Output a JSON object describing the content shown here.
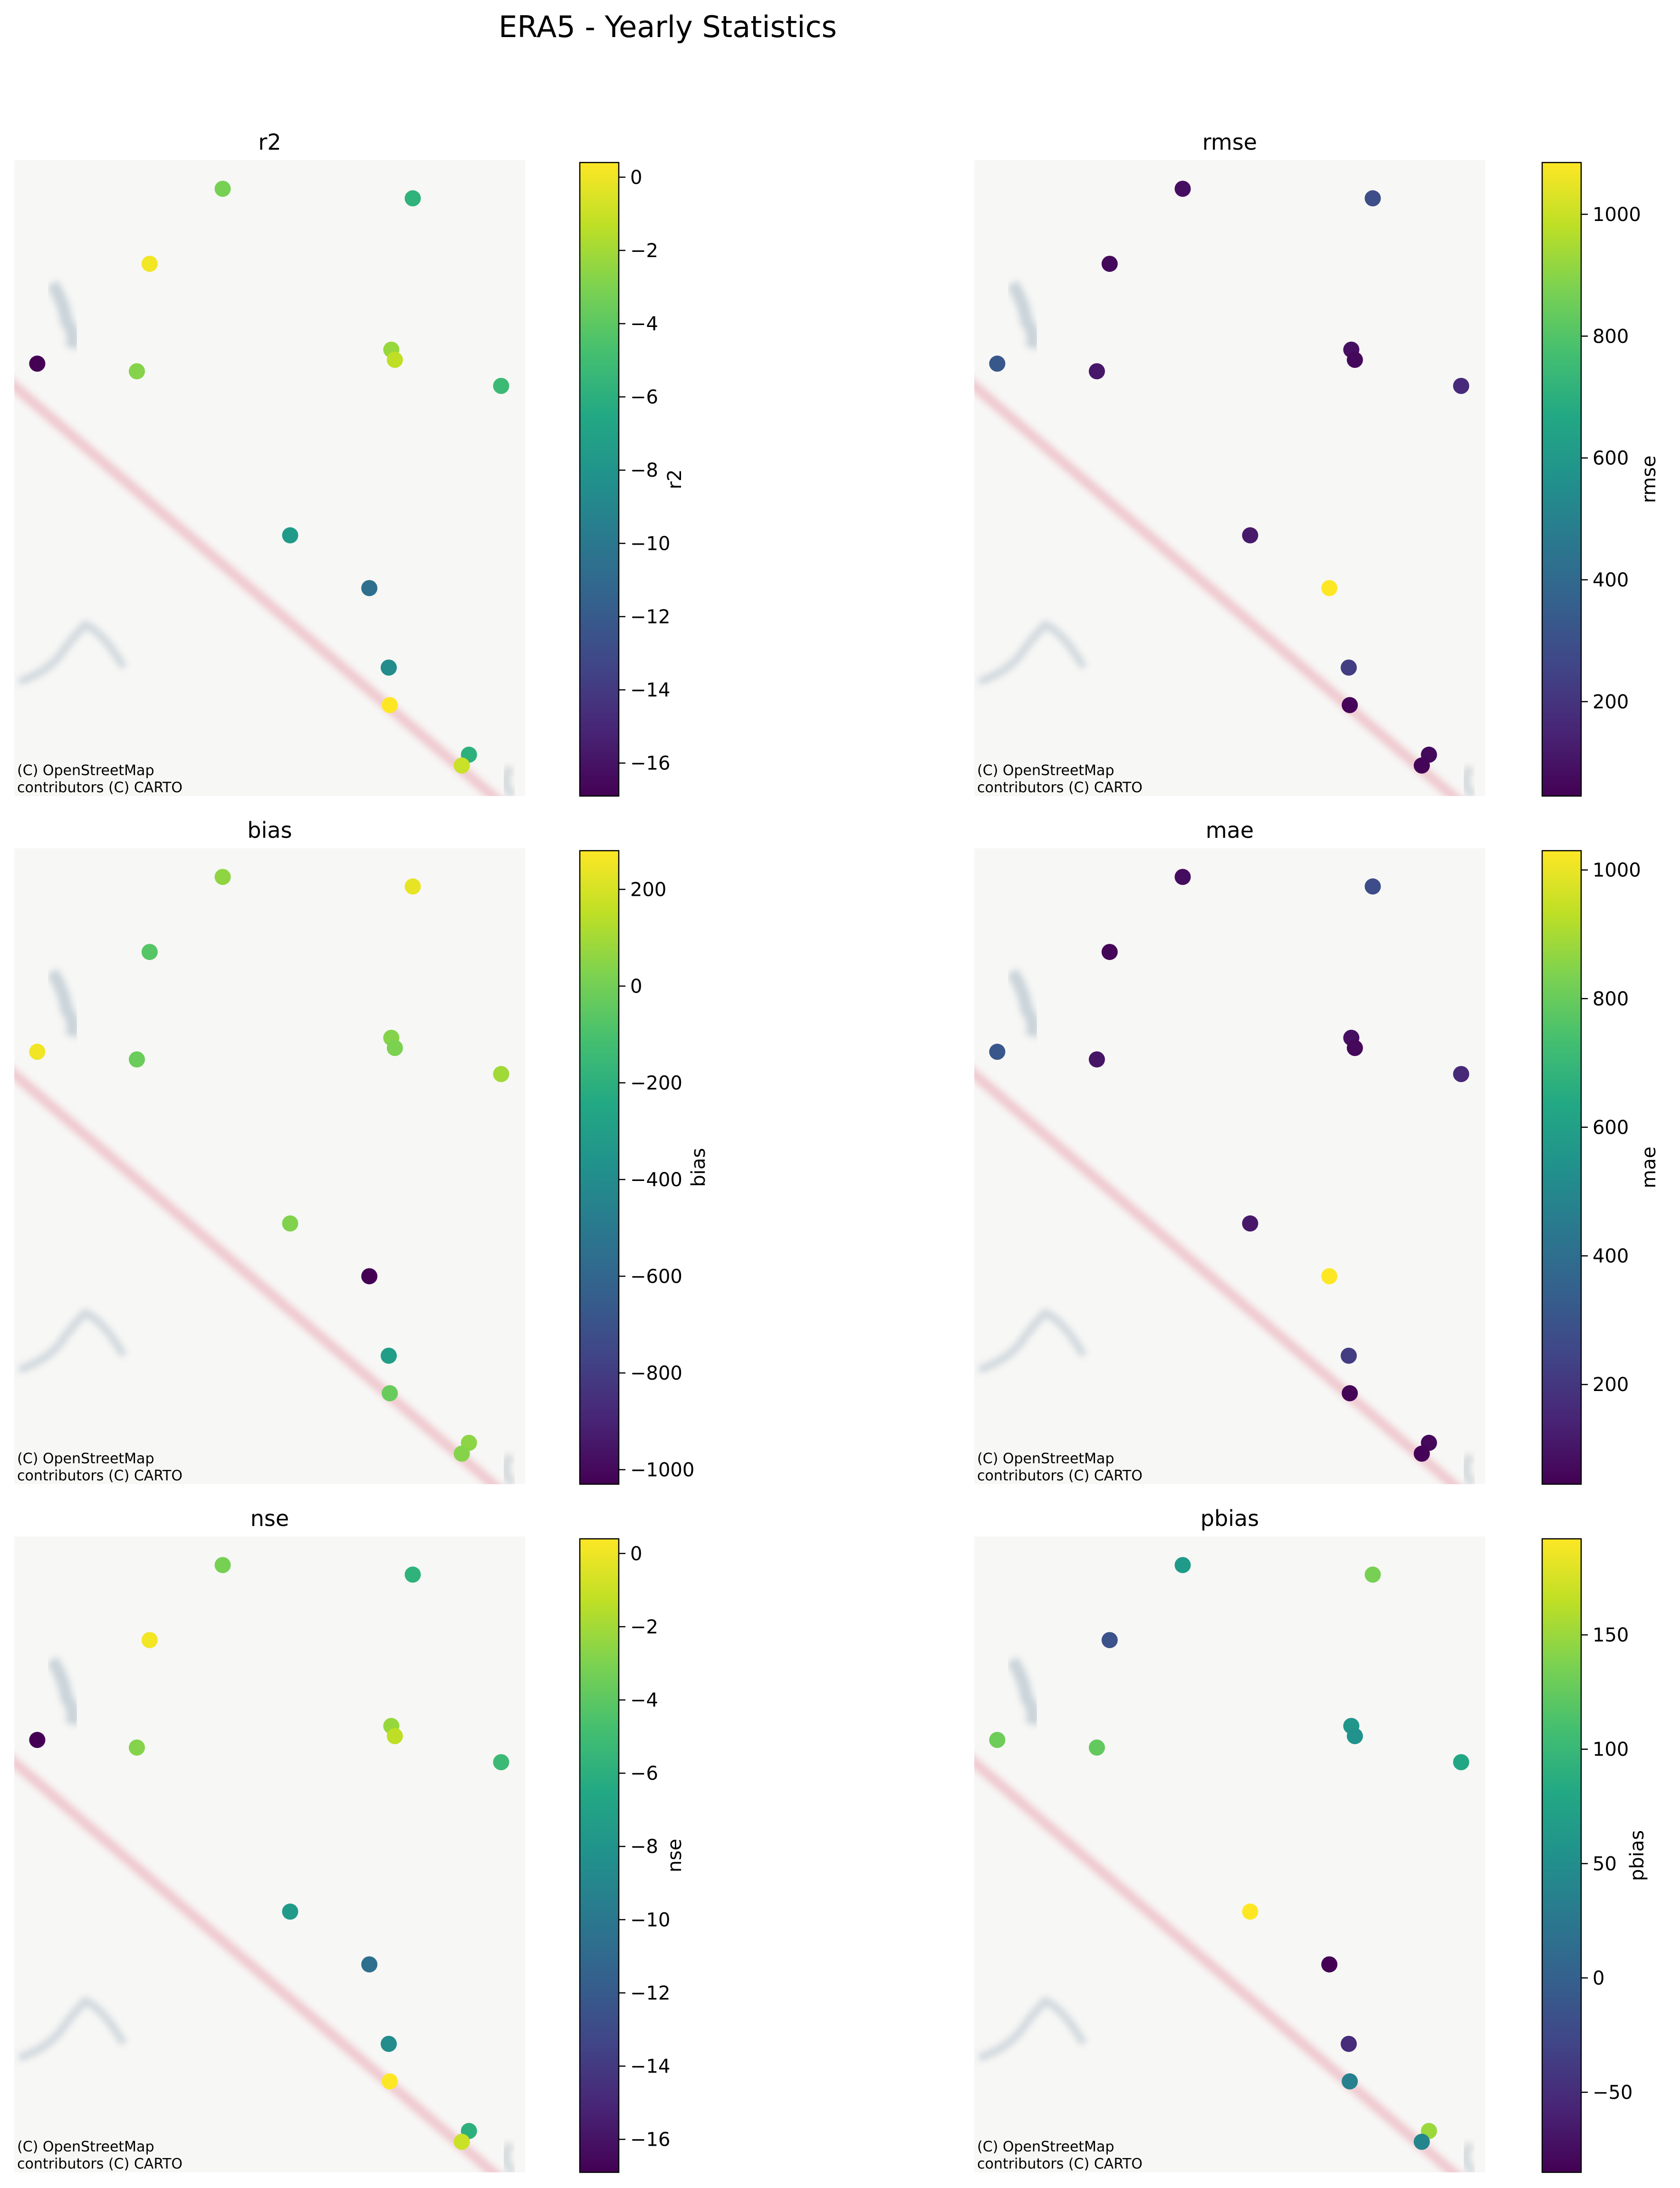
{
  "figure": {
    "title": "ERA5 - Yearly Statistics",
    "attribution_line1": "(C) OpenStreetMap",
    "attribution_line2": "contributors (C) CARTO"
  },
  "chart_data": [
    {
      "type": "scatter",
      "title": "r2",
      "colorbar_label": "r2",
      "colormap": "viridis",
      "clim": [
        -16.9,
        0.4
      ],
      "colorbar_ticks": [
        0,
        -2,
        -4,
        -6,
        -8,
        -10,
        -12,
        -14,
        -16
      ],
      "colorbar_tick_labels": [
        "0",
        "−2",
        "−4",
        "−6",
        "−8",
        "−10",
        "−12",
        "−14",
        "−16"
      ],
      "axes_visible": false,
      "basemap": "CARTO light (OpenStreetMap)",
      "points": [
        {
          "x": 0.045,
          "y": 0.68,
          "value": -16.9
        },
        {
          "x": 0.265,
          "y": 0.837,
          "value": 0.1
        },
        {
          "x": 0.24,
          "y": 0.668,
          "value": -2.8
        },
        {
          "x": 0.408,
          "y": 0.955,
          "value": -3.2
        },
        {
          "x": 0.78,
          "y": 0.94,
          "value": -5.8
        },
        {
          "x": 0.738,
          "y": 0.702,
          "value": -2.3
        },
        {
          "x": 0.745,
          "y": 0.686,
          "value": -1.3
        },
        {
          "x": 0.953,
          "y": 0.645,
          "value": -5.2
        },
        {
          "x": 0.54,
          "y": 0.41,
          "value": -7.5
        },
        {
          "x": 0.695,
          "y": 0.327,
          "value": -10.6
        },
        {
          "x": 0.733,
          "y": 0.202,
          "value": -8.6
        },
        {
          "x": 0.735,
          "y": 0.143,
          "value": 0.4
        },
        {
          "x": 0.89,
          "y": 0.065,
          "value": -5.9
        },
        {
          "x": 0.876,
          "y": 0.048,
          "value": -1.0
        }
      ]
    },
    {
      "type": "scatter",
      "title": "rmse",
      "colorbar_label": "rmse",
      "colormap": "viridis",
      "clim": [
        45,
        1085
      ],
      "colorbar_ticks": [
        200,
        400,
        600,
        800,
        1000
      ],
      "colorbar_tick_labels": [
        "200",
        "400",
        "600",
        "800",
        "1000"
      ],
      "axes_visible": false,
      "basemap": "CARTO light (OpenStreetMap)",
      "points": [
        {
          "x": 0.045,
          "y": 0.68,
          "value": 330
        },
        {
          "x": 0.265,
          "y": 0.837,
          "value": 70
        },
        {
          "x": 0.24,
          "y": 0.668,
          "value": 110
        },
        {
          "x": 0.408,
          "y": 0.955,
          "value": 85
        },
        {
          "x": 0.78,
          "y": 0.94,
          "value": 290
        },
        {
          "x": 0.738,
          "y": 0.702,
          "value": 90
        },
        {
          "x": 0.745,
          "y": 0.686,
          "value": 70
        },
        {
          "x": 0.953,
          "y": 0.645,
          "value": 170
        },
        {
          "x": 0.54,
          "y": 0.41,
          "value": 120
        },
        {
          "x": 0.695,
          "y": 0.327,
          "value": 1085
        },
        {
          "x": 0.733,
          "y": 0.202,
          "value": 230
        },
        {
          "x": 0.735,
          "y": 0.143,
          "value": 60
        },
        {
          "x": 0.89,
          "y": 0.065,
          "value": 70
        },
        {
          "x": 0.876,
          "y": 0.048,
          "value": 55
        }
      ]
    },
    {
      "type": "scatter",
      "title": "bias",
      "colorbar_label": "bias",
      "colormap": "viridis",
      "clim": [
        -1030,
        280
      ],
      "colorbar_ticks": [
        200,
        0,
        -200,
        -400,
        -600,
        -800,
        -1000
      ],
      "colorbar_tick_labels": [
        "200",
        "0",
        "−200",
        "−400",
        "−600",
        "−800",
        "−1000"
      ],
      "axes_visible": false,
      "basemap": "CARTO light (OpenStreetMap)",
      "points": [
        {
          "x": 0.045,
          "y": 0.68,
          "value": 255
        },
        {
          "x": 0.265,
          "y": 0.837,
          "value": -70
        },
        {
          "x": 0.24,
          "y": 0.668,
          "value": -20
        },
        {
          "x": 0.408,
          "y": 0.955,
          "value": 60
        },
        {
          "x": 0.78,
          "y": 0.94,
          "value": 235
        },
        {
          "x": 0.738,
          "y": 0.702,
          "value": 40
        },
        {
          "x": 0.745,
          "y": 0.686,
          "value": 20
        },
        {
          "x": 0.953,
          "y": 0.645,
          "value": 95
        },
        {
          "x": 0.54,
          "y": 0.41,
          "value": 30
        },
        {
          "x": 0.695,
          "y": 0.327,
          "value": -1030
        },
        {
          "x": 0.733,
          "y": 0.202,
          "value": -300
        },
        {
          "x": 0.735,
          "y": 0.143,
          "value": -25
        },
        {
          "x": 0.89,
          "y": 0.065,
          "value": 55
        },
        {
          "x": 0.876,
          "y": 0.048,
          "value": 40
        }
      ]
    },
    {
      "type": "scatter",
      "title": "mae",
      "colorbar_label": "mae",
      "colormap": "viridis",
      "clim": [
        45,
        1030
      ],
      "colorbar_ticks": [
        200,
        400,
        600,
        800,
        1000
      ],
      "colorbar_tick_labels": [
        "200",
        "400",
        "600",
        "800",
        "1000"
      ],
      "axes_visible": false,
      "basemap": "CARTO light (OpenStreetMap)",
      "points": [
        {
          "x": 0.045,
          "y": 0.68,
          "value": 310
        },
        {
          "x": 0.265,
          "y": 0.837,
          "value": 60
        },
        {
          "x": 0.24,
          "y": 0.668,
          "value": 100
        },
        {
          "x": 0.408,
          "y": 0.955,
          "value": 80
        },
        {
          "x": 0.78,
          "y": 0.94,
          "value": 270
        },
        {
          "x": 0.738,
          "y": 0.702,
          "value": 85
        },
        {
          "x": 0.745,
          "y": 0.686,
          "value": 65
        },
        {
          "x": 0.953,
          "y": 0.645,
          "value": 160
        },
        {
          "x": 0.54,
          "y": 0.41,
          "value": 110
        },
        {
          "x": 0.695,
          "y": 0.327,
          "value": 1030
        },
        {
          "x": 0.733,
          "y": 0.202,
          "value": 220
        },
        {
          "x": 0.735,
          "y": 0.143,
          "value": 55
        },
        {
          "x": 0.89,
          "y": 0.065,
          "value": 65
        },
        {
          "x": 0.876,
          "y": 0.048,
          "value": 50
        }
      ]
    },
    {
      "type": "scatter",
      "title": "nse",
      "colorbar_label": "nse",
      "colormap": "viridis",
      "clim": [
        -16.9,
        0.4
      ],
      "colorbar_ticks": [
        0,
        -2,
        -4,
        -6,
        -8,
        -10,
        -12,
        -14,
        -16
      ],
      "colorbar_tick_labels": [
        "0",
        "−2",
        "−4",
        "−6",
        "−8",
        "−10",
        "−12",
        "−14",
        "−16"
      ],
      "axes_visible": false,
      "basemap": "CARTO light (OpenStreetMap)",
      "points": [
        {
          "x": 0.045,
          "y": 0.68,
          "value": -16.9
        },
        {
          "x": 0.265,
          "y": 0.837,
          "value": 0.1
        },
        {
          "x": 0.24,
          "y": 0.668,
          "value": -2.8
        },
        {
          "x": 0.408,
          "y": 0.955,
          "value": -3.2
        },
        {
          "x": 0.78,
          "y": 0.94,
          "value": -5.8
        },
        {
          "x": 0.738,
          "y": 0.702,
          "value": -2.3
        },
        {
          "x": 0.745,
          "y": 0.686,
          "value": -1.3
        },
        {
          "x": 0.953,
          "y": 0.645,
          "value": -5.2
        },
        {
          "x": 0.54,
          "y": 0.41,
          "value": -7.5
        },
        {
          "x": 0.695,
          "y": 0.327,
          "value": -10.6
        },
        {
          "x": 0.733,
          "y": 0.202,
          "value": -8.6
        },
        {
          "x": 0.735,
          "y": 0.143,
          "value": 0.4
        },
        {
          "x": 0.89,
          "y": 0.065,
          "value": -5.9
        },
        {
          "x": 0.876,
          "y": 0.048,
          "value": -1.0
        }
      ]
    },
    {
      "type": "scatter",
      "title": "pbias",
      "colorbar_label": "pbias",
      "colormap": "viridis",
      "clim": [
        -85,
        192
      ],
      "colorbar_ticks": [
        150,
        100,
        50,
        0,
        -50
      ],
      "colorbar_tick_labels": [
        "150",
        "100",
        "50",
        "0",
        "−50"
      ],
      "axes_visible": false,
      "basemap": "CARTO light (OpenStreetMap)",
      "points": [
        {
          "x": 0.045,
          "y": 0.68,
          "value": 130
        },
        {
          "x": 0.265,
          "y": 0.837,
          "value": -15
        },
        {
          "x": 0.24,
          "y": 0.668,
          "value": 125
        },
        {
          "x": 0.408,
          "y": 0.955,
          "value": 65
        },
        {
          "x": 0.78,
          "y": 0.94,
          "value": 135
        },
        {
          "x": 0.738,
          "y": 0.702,
          "value": 60
        },
        {
          "x": 0.745,
          "y": 0.686,
          "value": 55
        },
        {
          "x": 0.953,
          "y": 0.645,
          "value": 80
        },
        {
          "x": 0.54,
          "y": 0.41,
          "value": 192
        },
        {
          "x": 0.695,
          "y": 0.327,
          "value": -85
        },
        {
          "x": 0.733,
          "y": 0.202,
          "value": -50
        },
        {
          "x": 0.735,
          "y": 0.143,
          "value": 35
        },
        {
          "x": 0.89,
          "y": 0.065,
          "value": 150
        },
        {
          "x": 0.876,
          "y": 0.048,
          "value": 40
        }
      ]
    }
  ]
}
